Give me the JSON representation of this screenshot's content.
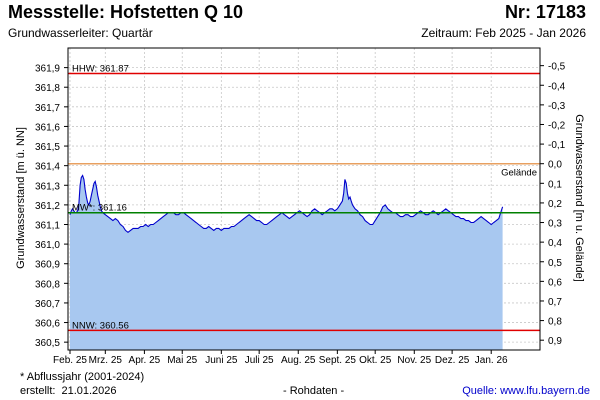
{
  "header": {
    "title": "Messstelle: Hofstetten Q 10",
    "number": "Nr: 17183",
    "aquifer": "Grundwasserleiter: Quartär",
    "period": "Zeitraum: Feb 2025 - Jan 2026"
  },
  "footer": {
    "note": "* Abflussjahr (2001-2024)",
    "created_label": "erstellt:",
    "created_date": "21.01.2026",
    "raw": "- Rohdaten -",
    "source": "Quelle: www.lfu.bayern.de"
  },
  "chart_data": {
    "type": "area",
    "ylabel": "Grundwasserstand [m ü. NN]",
    "ylabel_right": "Grundwasserstand [m u. Gelände]",
    "ylim": [
      360.46,
      362.0
    ],
    "ground_level": 361.41,
    "yticks": [
      "361,9",
      "361,8",
      "361,7",
      "361,6",
      "361,5",
      "361,4",
      "361,3",
      "361,2",
      "361,1",
      "361,0",
      "360,9",
      "360,8",
      "360,7",
      "360,6",
      "360,5"
    ],
    "yticks_right": [
      "-0,5",
      "-0,4",
      "-0,3",
      "-0,2",
      "-0,1",
      "0,0",
      "0,1",
      "0,2",
      "0,3",
      "0,4",
      "0,5",
      "0,6",
      "0,7",
      "0,8",
      "0,9"
    ],
    "xticks": [
      "Feb. 25",
      "Mrz. 25",
      "Apr. 25",
      "Mai 25",
      "Juni 25",
      "Juli 25",
      "Aug. 25",
      "Sept. 25",
      "Okt. 25",
      "Nov. 25",
      "Dez. 25",
      "Jan. 26"
    ],
    "xlim_days": [
      0,
      360
    ],
    "reference_lines": [
      {
        "label": "HHW: 361.87",
        "value": 361.87,
        "color": "#e00000"
      },
      {
        "label": "Gelände",
        "value": 361.41,
        "color": "#e8a060"
      },
      {
        "label": "MW*: 361.16",
        "value": 361.16,
        "color": "#008000"
      },
      {
        "label": "NNW: 360.56",
        "value": 360.56,
        "color": "#e00000"
      }
    ],
    "series": [
      {
        "color": "#0000cc",
        "fill": "#a8c8f0",
        "points": [
          [
            0,
            361.15
          ],
          [
            1,
            361.17
          ],
          [
            2,
            361.18
          ],
          [
            3,
            361.17
          ],
          [
            4,
            361.16
          ],
          [
            5,
            361.16
          ],
          [
            6,
            361.17
          ],
          [
            7,
            361.2
          ],
          [
            8,
            361.3
          ],
          [
            9,
            361.34
          ],
          [
            10,
            361.35
          ],
          [
            11,
            361.33
          ],
          [
            12,
            361.28
          ],
          [
            13,
            361.24
          ],
          [
            14,
            361.21
          ],
          [
            15,
            361.2
          ],
          [
            16,
            361.22
          ],
          [
            17,
            361.25
          ],
          [
            18,
            361.28
          ],
          [
            19,
            361.31
          ],
          [
            20,
            361.32
          ],
          [
            21,
            361.29
          ],
          [
            22,
            361.25
          ],
          [
            23,
            361.22
          ],
          [
            24,
            361.19
          ],
          [
            25,
            361.17
          ],
          [
            26,
            361.16
          ],
          [
            28,
            361.15
          ],
          [
            30,
            361.14
          ],
          [
            32,
            361.13
          ],
          [
            34,
            361.12
          ],
          [
            36,
            361.13
          ],
          [
            38,
            361.12
          ],
          [
            40,
            361.1
          ],
          [
            42,
            361.09
          ],
          [
            44,
            361.07
          ],
          [
            46,
            361.06
          ],
          [
            48,
            361.07
          ],
          [
            50,
            361.08
          ],
          [
            52,
            361.08
          ],
          [
            54,
            361.08
          ],
          [
            56,
            361.09
          ],
          [
            58,
            361.09
          ],
          [
            60,
            361.1
          ],
          [
            62,
            361.09
          ],
          [
            64,
            361.1
          ],
          [
            66,
            361.1
          ],
          [
            68,
            361.11
          ],
          [
            70,
            361.12
          ],
          [
            72,
            361.13
          ],
          [
            74,
            361.14
          ],
          [
            76,
            361.15
          ],
          [
            78,
            361.16
          ],
          [
            80,
            361.16
          ],
          [
            82,
            361.16
          ],
          [
            84,
            361.15
          ],
          [
            86,
            361.15
          ],
          [
            88,
            361.16
          ],
          [
            90,
            361.16
          ],
          [
            92,
            361.15
          ],
          [
            94,
            361.14
          ],
          [
            96,
            361.13
          ],
          [
            98,
            361.12
          ],
          [
            100,
            361.11
          ],
          [
            102,
            361.1
          ],
          [
            104,
            361.09
          ],
          [
            106,
            361.08
          ],
          [
            108,
            361.08
          ],
          [
            110,
            361.09
          ],
          [
            112,
            361.08
          ],
          [
            114,
            361.07
          ],
          [
            116,
            361.08
          ],
          [
            118,
            361.08
          ],
          [
            120,
            361.07
          ],
          [
            122,
            361.08
          ],
          [
            124,
            361.08
          ],
          [
            126,
            361.08
          ],
          [
            128,
            361.09
          ],
          [
            130,
            361.09
          ],
          [
            132,
            361.1
          ],
          [
            134,
            361.11
          ],
          [
            136,
            361.12
          ],
          [
            138,
            361.13
          ],
          [
            140,
            361.14
          ],
          [
            142,
            361.15
          ],
          [
            144,
            361.14
          ],
          [
            146,
            361.13
          ],
          [
            148,
            361.12
          ],
          [
            150,
            361.12
          ],
          [
            152,
            361.11
          ],
          [
            154,
            361.1
          ],
          [
            156,
            361.1
          ],
          [
            158,
            361.11
          ],
          [
            160,
            361.12
          ],
          [
            162,
            361.13
          ],
          [
            164,
            361.14
          ],
          [
            166,
            361.15
          ],
          [
            168,
            361.16
          ],
          [
            170,
            361.15
          ],
          [
            172,
            361.14
          ],
          [
            174,
            361.13
          ],
          [
            176,
            361.14
          ],
          [
            178,
            361.15
          ],
          [
            180,
            361.16
          ],
          [
            182,
            361.17
          ],
          [
            184,
            361.16
          ],
          [
            186,
            361.15
          ],
          [
            188,
            361.14
          ],
          [
            190,
            361.15
          ],
          [
            192,
            361.17
          ],
          [
            194,
            361.18
          ],
          [
            196,
            361.17
          ],
          [
            198,
            361.16
          ],
          [
            200,
            361.15
          ],
          [
            202,
            361.16
          ],
          [
            204,
            361.17
          ],
          [
            206,
            361.18
          ],
          [
            208,
            361.18
          ],
          [
            210,
            361.17
          ],
          [
            212,
            361.18
          ],
          [
            214,
            361.2
          ],
          [
            216,
            361.22
          ],
          [
            217,
            361.26
          ],
          [
            218,
            361.33
          ],
          [
            219,
            361.31
          ],
          [
            220,
            361.26
          ],
          [
            221,
            361.23
          ],
          [
            222,
            361.24
          ],
          [
            223,
            361.22
          ],
          [
            224,
            361.2
          ],
          [
            226,
            361.18
          ],
          [
            228,
            361.17
          ],
          [
            230,
            361.15
          ],
          [
            232,
            361.14
          ],
          [
            234,
            361.12
          ],
          [
            236,
            361.11
          ],
          [
            238,
            361.1
          ],
          [
            240,
            361.1
          ],
          [
            242,
            361.12
          ],
          [
            244,
            361.14
          ],
          [
            246,
            361.16
          ],
          [
            248,
            361.19
          ],
          [
            250,
            361.2
          ],
          [
            252,
            361.18
          ],
          [
            254,
            361.17
          ],
          [
            256,
            361.16
          ],
          [
            258,
            361.16
          ],
          [
            260,
            361.15
          ],
          [
            262,
            361.14
          ],
          [
            264,
            361.14
          ],
          [
            266,
            361.15
          ],
          [
            268,
            361.15
          ],
          [
            270,
            361.14
          ],
          [
            272,
            361.14
          ],
          [
            274,
            361.15
          ],
          [
            276,
            361.16
          ],
          [
            278,
            361.17
          ],
          [
            280,
            361.16
          ],
          [
            282,
            361.15
          ],
          [
            284,
            361.15
          ],
          [
            286,
            361.16
          ],
          [
            288,
            361.17
          ],
          [
            290,
            361.16
          ],
          [
            292,
            361.15
          ],
          [
            294,
            361.16
          ],
          [
            296,
            361.17
          ],
          [
            298,
            361.18
          ],
          [
            300,
            361.17
          ],
          [
            302,
            361.16
          ],
          [
            304,
            361.15
          ],
          [
            306,
            361.14
          ],
          [
            308,
            361.14
          ],
          [
            310,
            361.13
          ],
          [
            312,
            361.13
          ],
          [
            314,
            361.12
          ],
          [
            316,
            361.12
          ],
          [
            318,
            361.11
          ],
          [
            320,
            361.11
          ],
          [
            322,
            361.12
          ],
          [
            324,
            361.13
          ],
          [
            326,
            361.14
          ],
          [
            328,
            361.13
          ],
          [
            330,
            361.12
          ],
          [
            332,
            361.11
          ],
          [
            334,
            361.1
          ],
          [
            336,
            361.11
          ],
          [
            338,
            361.12
          ],
          [
            340,
            361.13
          ],
          [
            341,
            361.15
          ],
          [
            342,
            361.17
          ],
          [
            343,
            361.19
          ]
        ]
      }
    ]
  }
}
